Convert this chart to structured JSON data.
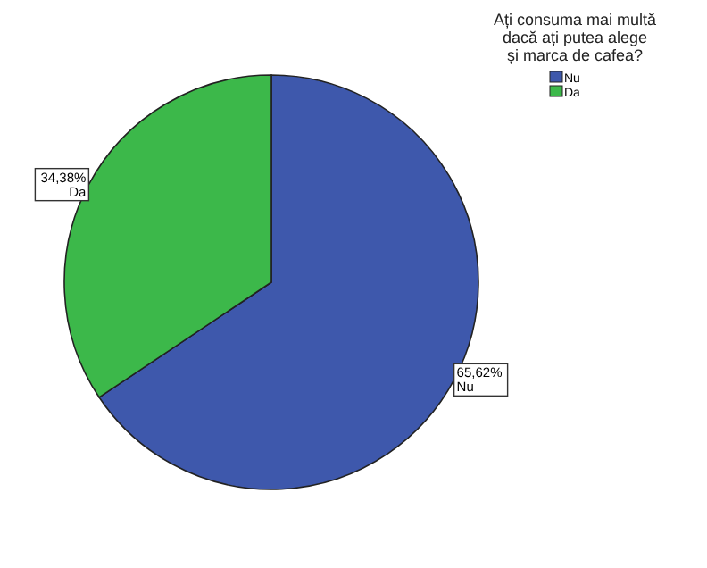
{
  "chart_data": {
    "type": "pie",
    "legend_title": "Ați consuma mai multă dacă ați putea alege și marca de cafea?",
    "categories": [
      "Nu",
      "Da"
    ],
    "values": [
      65.62,
      34.38
    ],
    "colors": [
      "#3e58ac",
      "#3cb84a"
    ],
    "value_labels": [
      "65,62%",
      "34,38%"
    ],
    "legend": "top right"
  }
}
